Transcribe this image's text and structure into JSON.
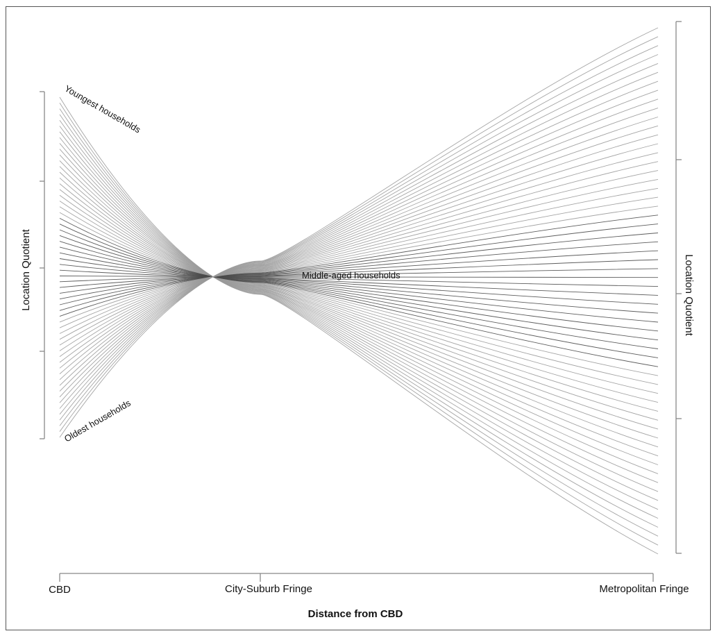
{
  "chart_data": {
    "type": "line",
    "xlabel": "Distance from CBD",
    "ylabel_left": "Location Quotient",
    "ylabel_right": "Location Quotient",
    "x_tick_labels": [
      "CBD",
      "City-Suburb Fringe",
      "Metropolitan Fringe"
    ],
    "annotations": {
      "youngest": "Youngest households",
      "oldest": "Oldest households",
      "middle": "Middle-aged households"
    },
    "grid": false,
    "legend": "none",
    "series_count": 60,
    "line_color_range": [
      "#aaaaaa",
      "#333333"
    ],
    "description_of_series": "Age cohorts from youngest to oldest; youngest starts high at CBD and drops to low at metropolitan fringe, oldest starts low at CBD and rises to high at metropolitan fringe."
  }
}
